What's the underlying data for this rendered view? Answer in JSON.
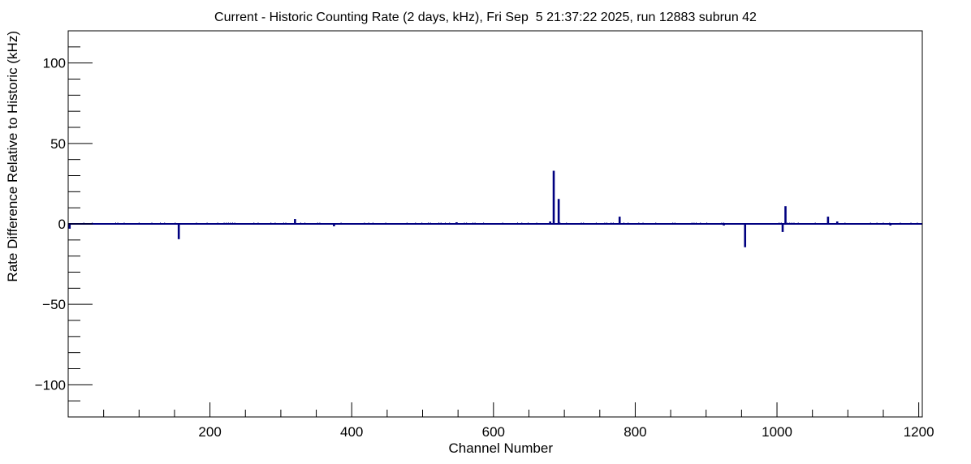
{
  "chart_data": {
    "type": "line",
    "title": "Current - Historic Counting Rate (2 days, kHz), Fri Sep  5 21:37:22 2025, run 12883 subrun 42",
    "xlabel": "Channel Number",
    "ylabel": "Rate Difference Relative to Historic (kHz)",
    "xlim": [
      0,
      1205
    ],
    "ylim": [
      -120,
      120
    ],
    "x_ticks": [
      200,
      400,
      600,
      800,
      1000,
      1200
    ],
    "y_ticks": [
      -100,
      -50,
      0,
      50,
      100
    ],
    "grid": false,
    "line_color": "#000080",
    "series": [
      {
        "baseline": 0,
        "spikes": [
          {
            "x": 2,
            "y": -3
          },
          {
            "x": 156,
            "y": -9.5
          },
          {
            "x": 320,
            "y": 3
          },
          {
            "x": 375,
            "y": -1.5
          },
          {
            "x": 548,
            "y": 1
          },
          {
            "x": 680,
            "y": 1.5
          },
          {
            "x": 685,
            "y": 33
          },
          {
            "x": 692,
            "y": 15.5
          },
          {
            "x": 778,
            "y": 4.5
          },
          {
            "x": 925,
            "y": -1
          },
          {
            "x": 955,
            "y": -14.5
          },
          {
            "x": 1008,
            "y": -5
          },
          {
            "x": 1012,
            "y": 11
          },
          {
            "x": 1072,
            "y": 4.5
          },
          {
            "x": 1085,
            "y": 1.5
          },
          {
            "x": 1160,
            "y": -1
          }
        ]
      }
    ]
  }
}
